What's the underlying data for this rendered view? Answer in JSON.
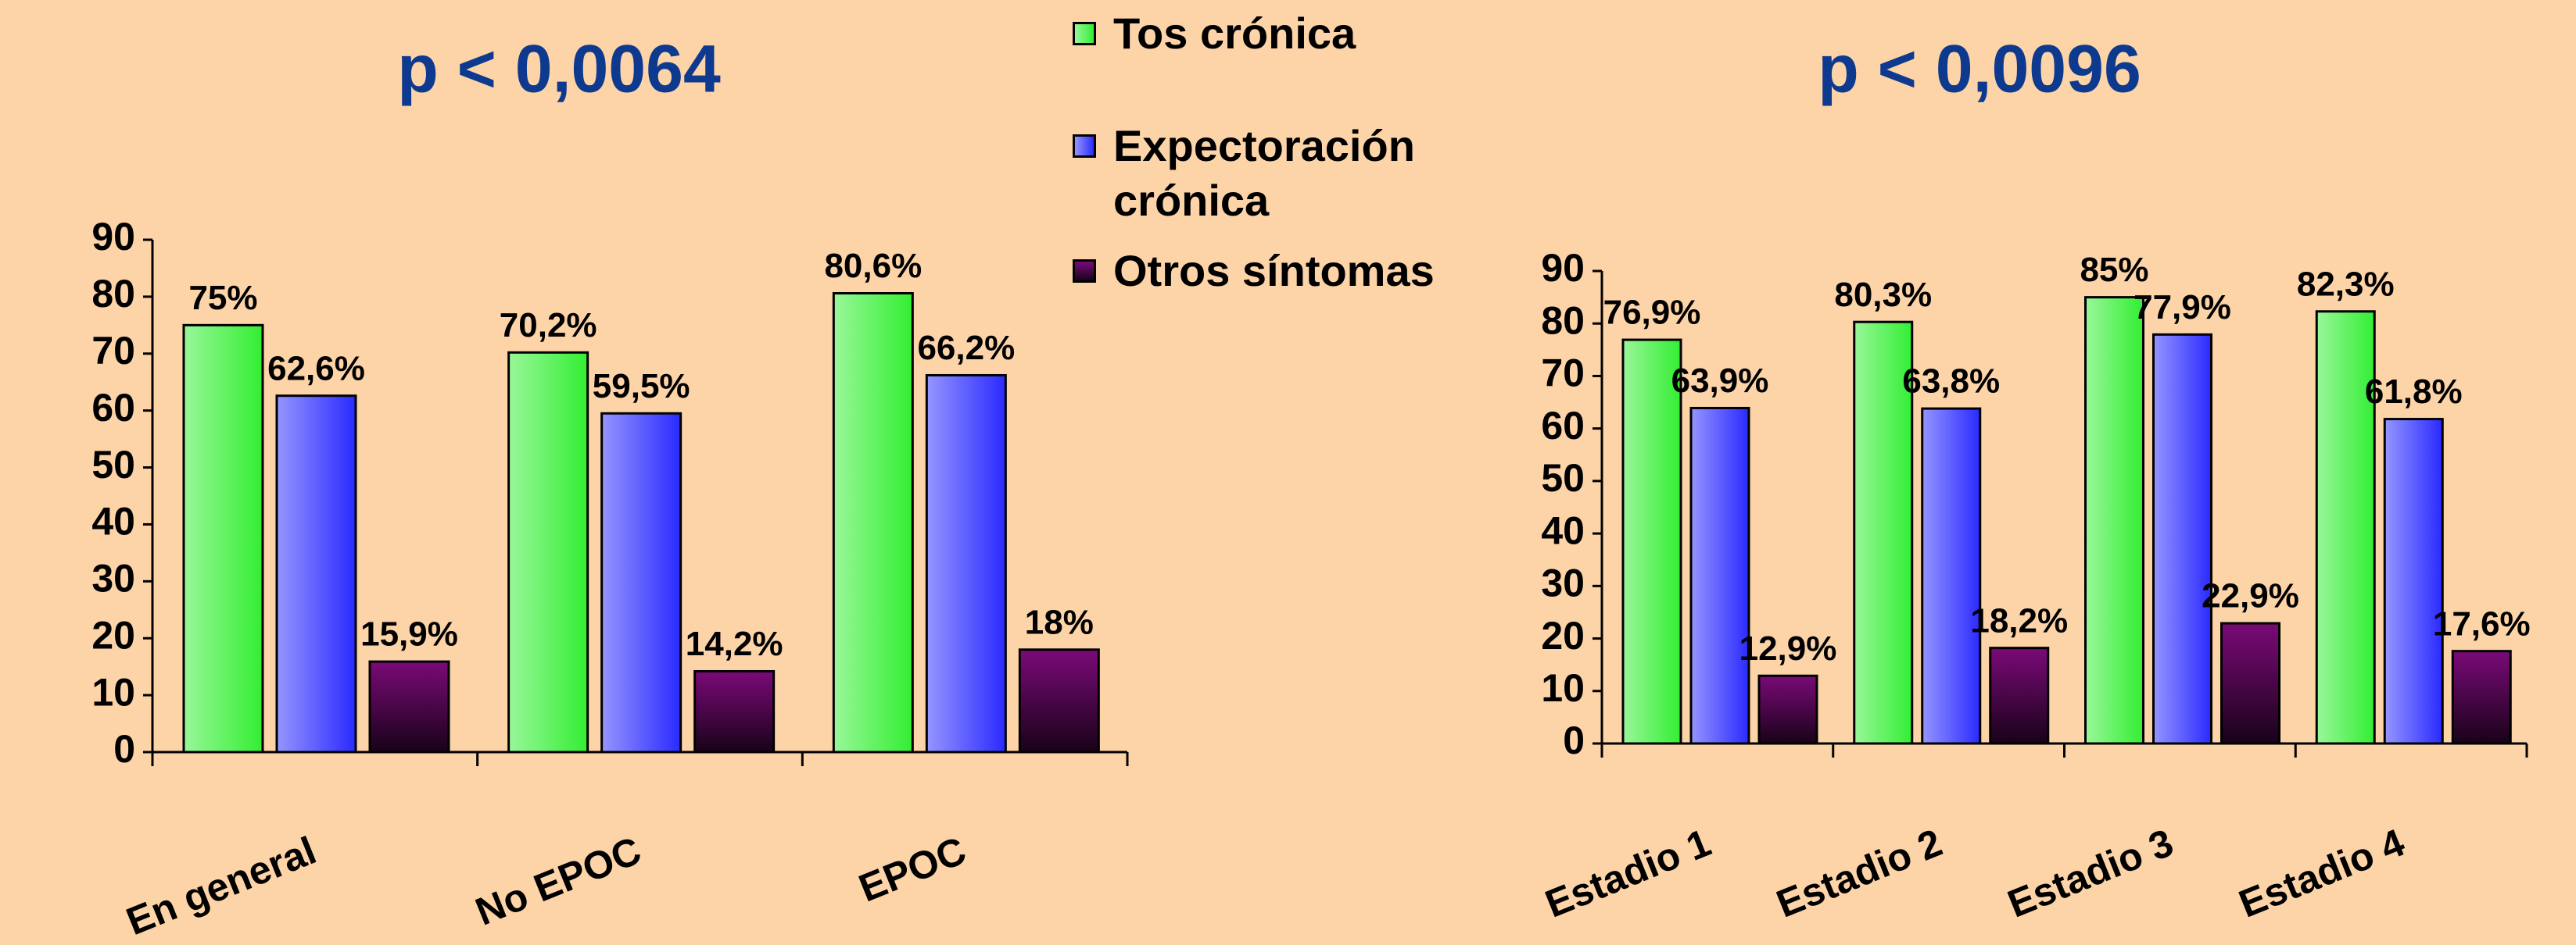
{
  "chart_data": [
    {
      "type": "bar",
      "title": "p < 0,0064",
      "categories": [
        "En general",
        "No EPOC",
        "EPOC"
      ],
      "series": [
        {
          "name": "Tos crónica",
          "color": "#33ee33",
          "values": [
            75,
            70.2,
            80.6
          ],
          "value_labels": [
            "75%",
            "70,2%",
            "80,6%"
          ]
        },
        {
          "name": "Expectoración crónica",
          "color": "#2a2aff",
          "values": [
            62.6,
            59.5,
            66.2
          ],
          "value_labels": [
            "62,6%",
            "59,5%",
            "66,2%"
          ]
        },
        {
          "name": "Otros síntomas",
          "color": "#7a0a78",
          "values": [
            15.9,
            14.2,
            18
          ],
          "value_labels": [
            "15,9%",
            "14,2%",
            "18%"
          ]
        }
      ],
      "ylim": [
        0,
        90
      ],
      "yticks": [
        0,
        10,
        20,
        30,
        40,
        50,
        60,
        70,
        80,
        90
      ]
    },
    {
      "type": "bar",
      "title": "p < 0,0096",
      "categories": [
        "Estadio 1",
        "Estadio 2",
        "Estadio 3",
        "Estadio 4"
      ],
      "series": [
        {
          "color": "#33ee33",
          "values": [
            76.9,
            80.3,
            85,
            82.3
          ],
          "value_labels": [
            "76,9%",
            "80,3%",
            "85%",
            "82,3%"
          ]
        },
        {
          "color": "#2a2aff",
          "values": [
            63.9,
            63.8,
            77.9,
            61.8
          ],
          "value_labels": [
            "63,9%",
            "63,8%",
            "77,9%",
            "61,8%"
          ]
        },
        {
          "color": "#7a0a78",
          "values": [
            12.9,
            18.2,
            22.9,
            17.6
          ],
          "value_labels": [
            "12,9%",
            "18,2%",
            "22,9%",
            "17,6%"
          ]
        }
      ],
      "ylim": [
        0,
        90
      ],
      "yticks": [
        0,
        10,
        20,
        30,
        40,
        50,
        60,
        70,
        80,
        90
      ]
    }
  ]
}
